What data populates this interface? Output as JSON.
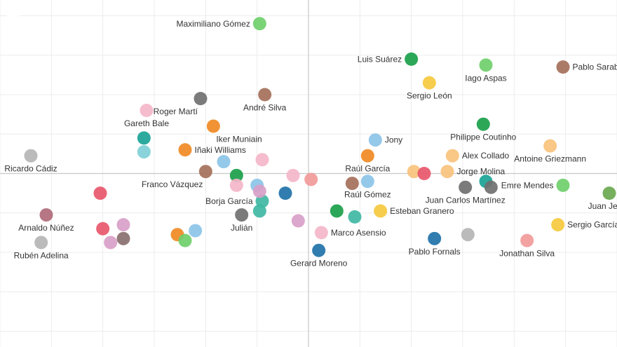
{
  "chart_data": {
    "type": "scatter",
    "title": "",
    "xlabel": "",
    "ylabel": "",
    "xlim": [
      -6,
      6
    ],
    "ylim": [
      -4.4,
      4.4
    ],
    "grid": true,
    "legend": "none",
    "points": [
      {
        "label": "Maximiliano Gómez",
        "x": -0.95,
        "y": 3.8,
        "color": "#6fcf6a",
        "label_side": "left"
      },
      {
        "label": "Luis Suárez",
        "x": 2.0,
        "y": 2.9,
        "color": "#1aa04a",
        "label_side": "left"
      },
      {
        "label": "Iago Aspas",
        "x": 3.45,
        "y": 2.75,
        "color": "#6fcf6a",
        "label_side": "below"
      },
      {
        "label": "Pablo Sarabia",
        "x": 4.95,
        "y": 2.7,
        "color": "#a5705a",
        "label_side": "right"
      },
      {
        "label": "Sergio León",
        "x": 2.35,
        "y": 2.3,
        "color": "#f5c93d",
        "label_side": "below"
      },
      {
        "label": "Roger Martí",
        "x": -2.1,
        "y": 1.9,
        "color": "#707070",
        "label_side": "below-left"
      },
      {
        "label": "André Silva",
        "x": -0.85,
        "y": 2.0,
        "color": "#a5705a",
        "label_side": "below"
      },
      {
        "label": "Gareth Bale",
        "x": -3.15,
        "y": 1.6,
        "color": "#f4b6c9",
        "label_side": "below"
      },
      {
        "label": "Iker Muniain",
        "x": -1.85,
        "y": 1.2,
        "color": "#f08a24",
        "label_side": "below-right"
      },
      {
        "label": "Philippe Coutinho",
        "x": 3.4,
        "y": 1.25,
        "color": "#1aa04a",
        "label_side": "below"
      },
      {
        "label": "Jony",
        "x": 1.3,
        "y": 0.85,
        "color": "#8cc4e8",
        "label_side": "right"
      },
      {
        "label": "Antoine Griezmann",
        "x": 4.7,
        "y": 0.7,
        "color": "#f8c27c",
        "label_side": "below"
      },
      {
        "label": "Iñaki Williams",
        "x": -2.4,
        "y": 0.6,
        "color": "#f08a24",
        "label_side": "right"
      },
      {
        "label": "Ricardo Cádiz",
        "x": -5.4,
        "y": 0.45,
        "color": "#b5b5b5",
        "label_side": "below"
      },
      {
        "label": "Alex Collado",
        "x": 2.8,
        "y": 0.45,
        "color": "#f8c27c",
        "label_side": "right"
      },
      {
        "label": "Raúl García",
        "x": 1.15,
        "y": 0.45,
        "color": "#f08a24",
        "label_side": "below"
      },
      {
        "label": "Franco Vázquez",
        "x": -2.0,
        "y": 0.05,
        "color": "#a5705a",
        "label_side": "below-left"
      },
      {
        "label": "Jorge Molina",
        "x": 2.7,
        "y": 0.05,
        "color": "#f8c27c",
        "label_side": "right"
      },
      {
        "label": "Borja García",
        "x": -0.9,
        "y": -0.7,
        "color": "#3fb8a3",
        "label_side": "left"
      },
      {
        "label": "Raúl Gómez",
        "x": 1.15,
        "y": -0.2,
        "color": "#8cc4e8",
        "label_side": "below"
      },
      {
        "label": "Juan Carlos Martínez",
        "x": 3.05,
        "y": -0.35,
        "color": "#707070",
        "label_side": "below"
      },
      {
        "label": "Emre Mendes",
        "x": 4.95,
        "y": -0.3,
        "color": "#6fcf6a",
        "label_side": "left"
      },
      {
        "label": "Juan Jesús",
        "x": 5.85,
        "y": -0.5,
        "color": "#6aa84f",
        "label_side": "below"
      },
      {
        "label": "Esteban Granero",
        "x": 1.4,
        "y": -0.95,
        "color": "#f5c93d",
        "label_side": "right"
      },
      {
        "label": "Julián",
        "x": -1.3,
        "y": -1.05,
        "color": "#707070",
        "label_side": "below"
      },
      {
        "label": "Arnaldo Núñez",
        "x": -5.1,
        "y": -1.05,
        "color": "#b06a7a",
        "label_side": "below"
      },
      {
        "label": "Sergio García",
        "x": 4.85,
        "y": -1.3,
        "color": "#f5c93d",
        "label_side": "right"
      },
      {
        "label": "Marco Asensio",
        "x": 0.25,
        "y": -1.5,
        "color": "#f4b6c9",
        "label_side": "right"
      },
      {
        "label": "Pablo Fornals",
        "x": 2.45,
        "y": -1.65,
        "color": "#1f72a8",
        "label_side": "below"
      },
      {
        "label": "Jonathan Silva",
        "x": 4.25,
        "y": -1.7,
        "color": "#f29a9a",
        "label_side": "below"
      },
      {
        "label": "Rubén Adelina",
        "x": -5.2,
        "y": -1.75,
        "color": "#b5b5b5",
        "label_side": "below"
      },
      {
        "label": "Gerard Moreno",
        "x": 0.2,
        "y": -1.95,
        "color": "#1f72a8",
        "label_side": "below"
      },
      {
        "label": "",
        "x": -5.75,
        "y": 4.05,
        "color": "#ffffff",
        "label_side": "none"
      },
      {
        "label": "",
        "x": -3.2,
        "y": 0.9,
        "color": "#1aa396",
        "label_side": "none"
      },
      {
        "label": "",
        "x": -3.2,
        "y": 0.55,
        "color": "#7fd0d8",
        "label_side": "none"
      },
      {
        "label": "",
        "x": -1.65,
        "y": 0.3,
        "color": "#8cc4e8",
        "label_side": "none"
      },
      {
        "label": "",
        "x": -1.4,
        "y": -0.05,
        "color": "#1aa04a",
        "label_side": "none"
      },
      {
        "label": "",
        "x": -0.9,
        "y": 0.35,
        "color": "#f4b6c9",
        "label_side": "none"
      },
      {
        "label": "",
        "x": -1.0,
        "y": -0.3,
        "color": "#8cc4e8",
        "label_side": "none"
      },
      {
        "label": "",
        "x": -0.3,
        "y": -0.05,
        "color": "#f4b6c9",
        "label_side": "none"
      },
      {
        "label": "",
        "x": -0.45,
        "y": -0.5,
        "color": "#1f72a8",
        "label_side": "none"
      },
      {
        "label": "",
        "x": -1.4,
        "y": -0.3,
        "color": "#f4b6c9",
        "label_side": "none"
      },
      {
        "label": "",
        "x": -0.95,
        "y": -0.45,
        "color": "#d9a0c8",
        "label_side": "none"
      },
      {
        "label": "",
        "x": -0.95,
        "y": -0.95,
        "color": "#3fb8a3",
        "label_side": "none"
      },
      {
        "label": "",
        "x": -4.05,
        "y": -0.5,
        "color": "#e8576b",
        "label_side": "none"
      },
      {
        "label": "",
        "x": -4.0,
        "y": -1.4,
        "color": "#e8576b",
        "label_side": "none"
      },
      {
        "label": "",
        "x": -3.6,
        "y": -1.3,
        "color": "#d9a0c8",
        "label_side": "none"
      },
      {
        "label": "",
        "x": -3.85,
        "y": -1.75,
        "color": "#d9a0c8",
        "label_side": "none"
      },
      {
        "label": "",
        "x": -3.6,
        "y": -1.65,
        "color": "#8a6f6f",
        "label_side": "none"
      },
      {
        "label": "",
        "x": -2.55,
        "y": -1.55,
        "color": "#f08a24",
        "label_side": "none"
      },
      {
        "label": "",
        "x": -2.4,
        "y": -1.7,
        "color": "#6fcf6a",
        "label_side": "none"
      },
      {
        "label": "",
        "x": -2.2,
        "y": -1.45,
        "color": "#8cc4e8",
        "label_side": "none"
      },
      {
        "label": "",
        "x": -0.2,
        "y": -1.2,
        "color": "#d9a0c8",
        "label_side": "none"
      },
      {
        "label": "",
        "x": 0.9,
        "y": -1.1,
        "color": "#3fb8a3",
        "label_side": "none"
      },
      {
        "label": "",
        "x": 0.55,
        "y": -0.95,
        "color": "#1aa04a",
        "label_side": "none"
      },
      {
        "label": "",
        "x": 0.85,
        "y": -0.25,
        "color": "#a5705a",
        "label_side": "none"
      },
      {
        "label": "",
        "x": 2.05,
        "y": 0.05,
        "color": "#f8c27c",
        "label_side": "none"
      },
      {
        "label": "",
        "x": 2.25,
        "y": 0.0,
        "color": "#e8576b",
        "label_side": "none"
      },
      {
        "label": "",
        "x": 3.45,
        "y": -0.2,
        "color": "#1aa396",
        "label_side": "none"
      },
      {
        "label": "",
        "x": 3.55,
        "y": -0.35,
        "color": "#707070",
        "label_side": "none"
      },
      {
        "label": "",
        "x": 3.1,
        "y": -1.55,
        "color": "#b5b5b5",
        "label_side": "none"
      },
      {
        "label": "",
        "x": 0.05,
        "y": -0.15,
        "color": "#f29a9a",
        "label_side": "none"
      },
      {
        "label": "",
        "x": 5.9,
        "y": 0.7,
        "color": "#ffffff",
        "label_side": "none"
      }
    ]
  }
}
